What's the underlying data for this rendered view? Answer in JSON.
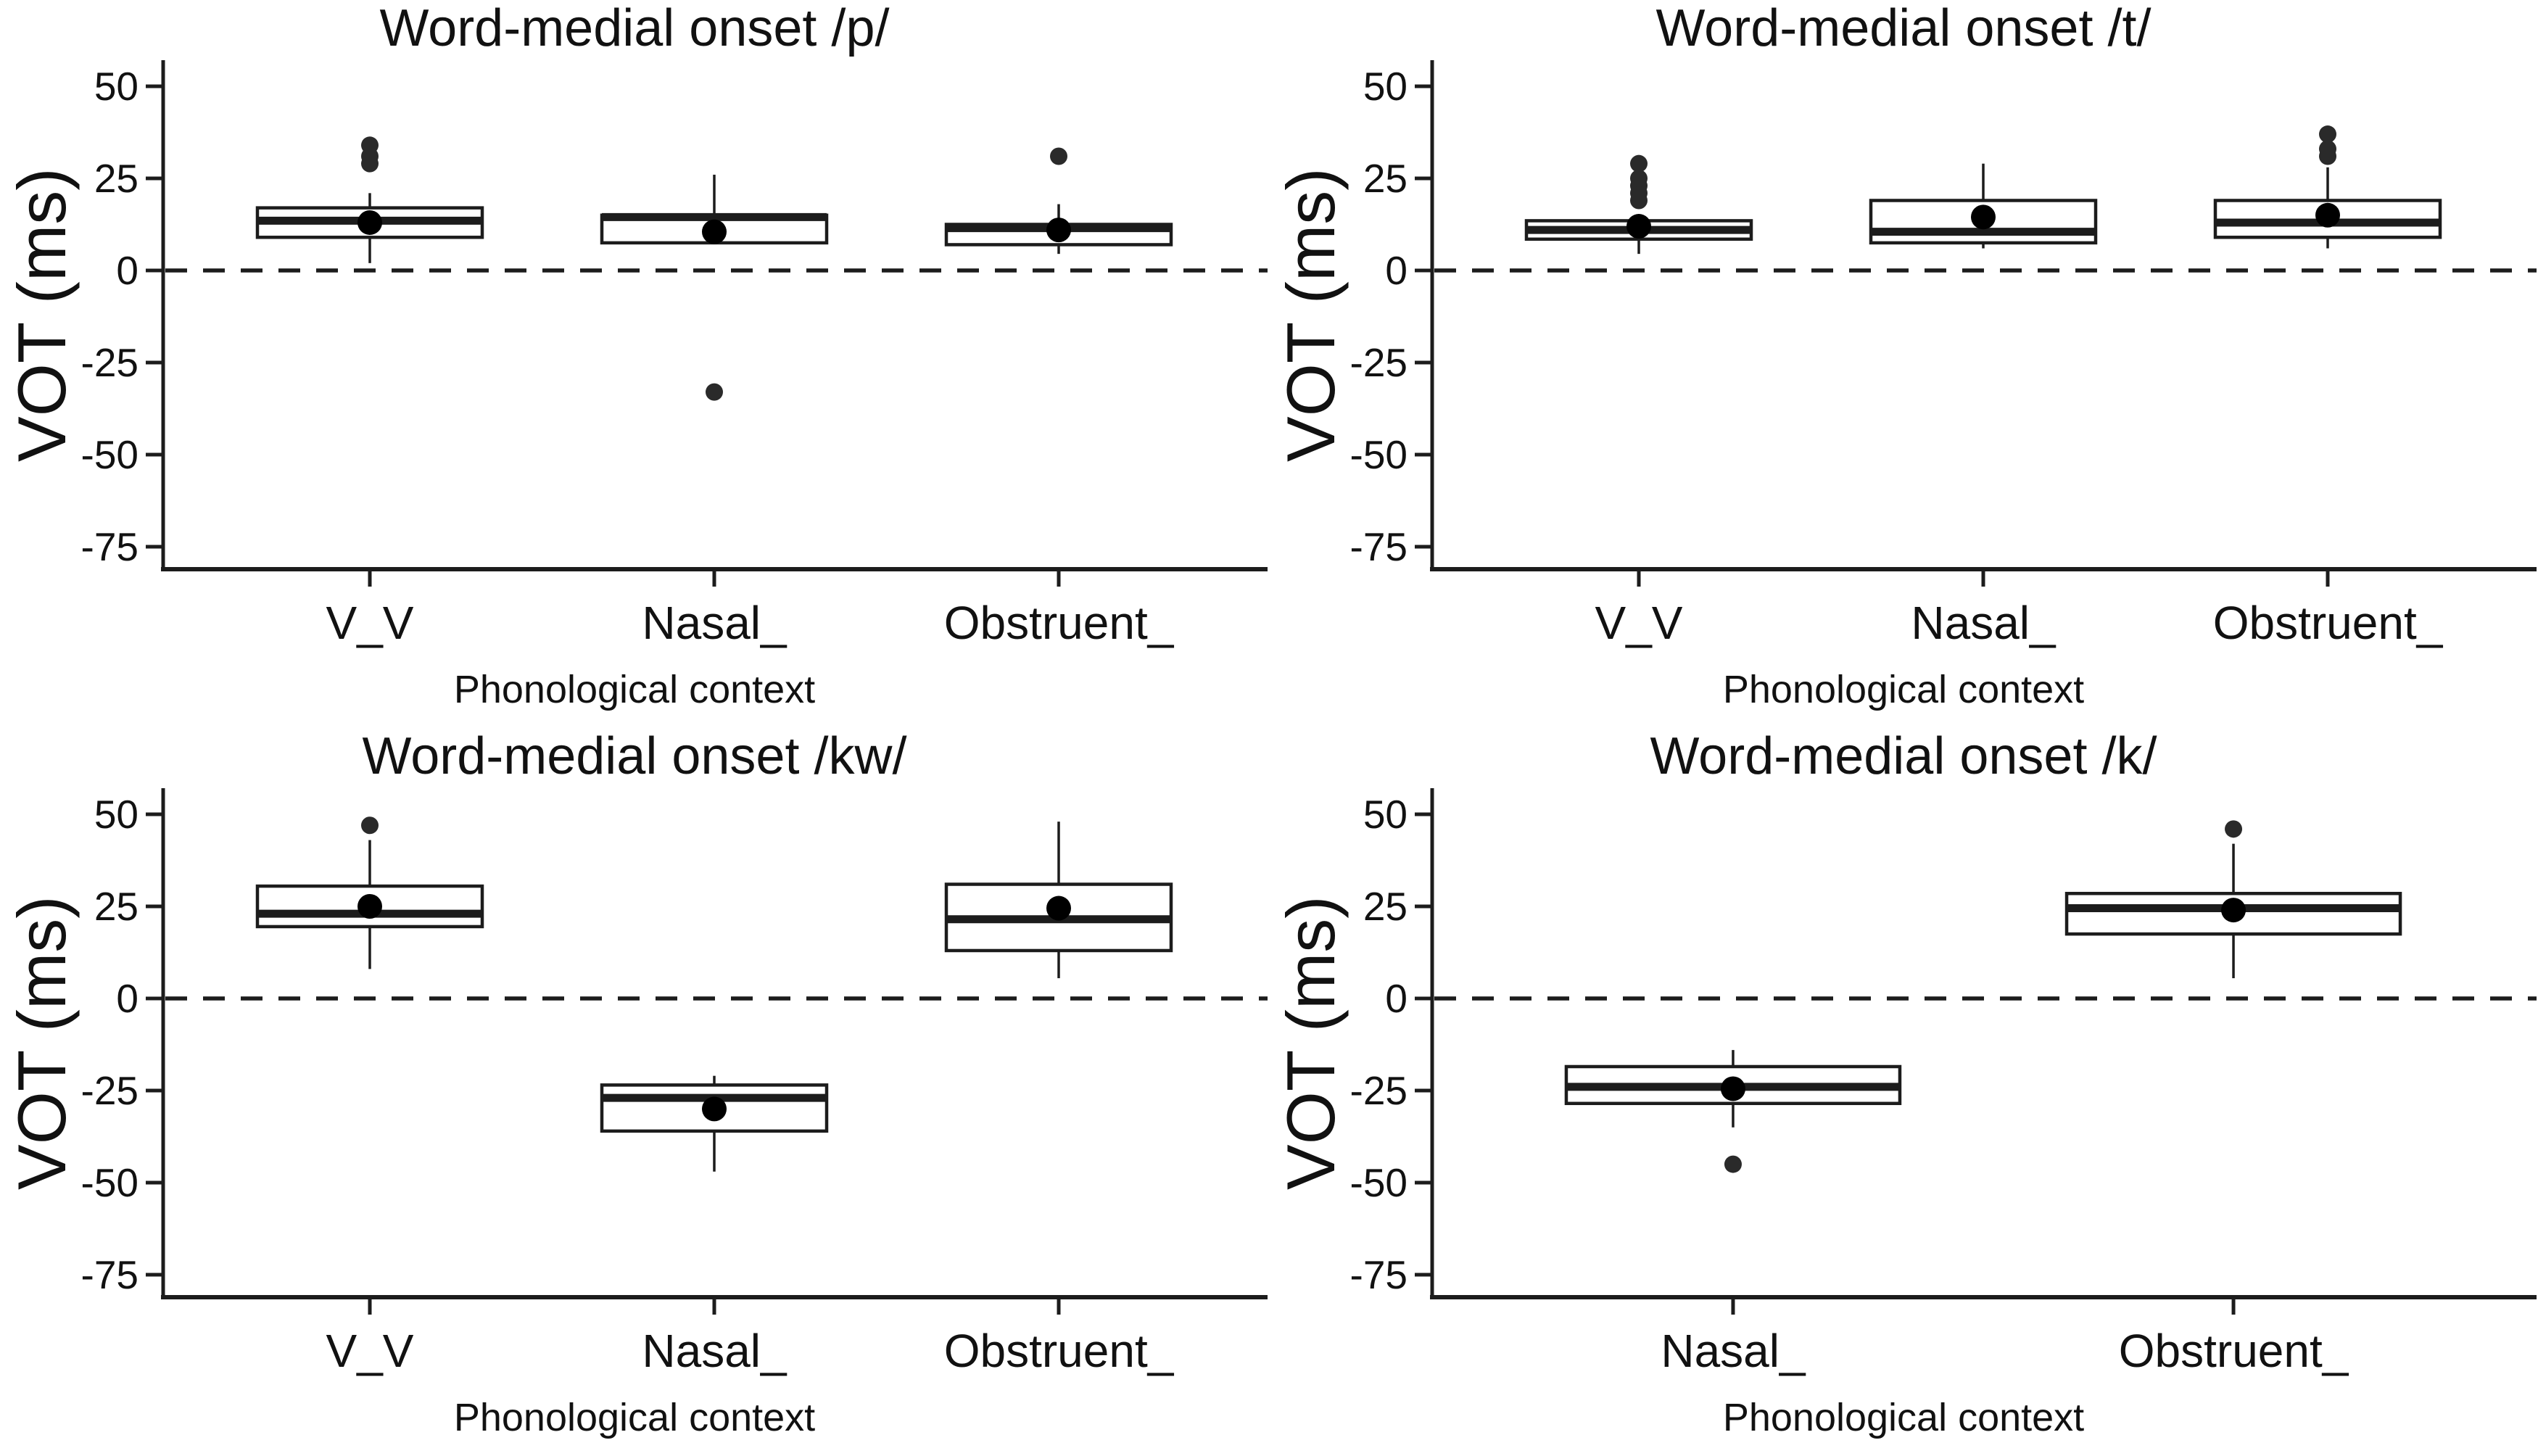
{
  "figure": {
    "background": "#ffffff",
    "ink_color": "#1c1c1c",
    "text_color": "#111111",
    "layout": "2x2 grid of boxplot panels"
  },
  "chart_data": [
    {
      "type": "boxplot",
      "title": "Word-medial onset /p/",
      "xlabel": "Phonological context",
      "ylabel": "VOT (ms)",
      "ylim": [
        -81,
        57
      ],
      "y_ticks": [
        50,
        25,
        0,
        -25,
        -50,
        -75
      ],
      "reference_line_y": 0,
      "grid": "off",
      "legend": "none",
      "categories": [
        "V_V",
        "Nasal_",
        "Obstruent_"
      ],
      "boxes": [
        {
          "category": "V_V",
          "whisker_low": 2,
          "q1": 9,
          "median": 13.5,
          "q3": 17,
          "whisker_high": 21,
          "mean": 13,
          "outliers": [
            29,
            31,
            34
          ]
        },
        {
          "category": "Nasal_",
          "whisker_low": 7.5,
          "q1": 7.5,
          "median": 14.5,
          "q3": 15,
          "whisker_high": 26,
          "mean": 10.5,
          "outliers": [
            -33
          ]
        },
        {
          "category": "Obstruent_",
          "whisker_low": 4.5,
          "q1": 7,
          "median": 11.5,
          "q3": 12.5,
          "whisker_high": 18,
          "mean": 11,
          "outliers": [
            31
          ]
        }
      ]
    },
    {
      "type": "boxplot",
      "title": "Word-medial onset /t/",
      "xlabel": "Phonological context",
      "ylabel": "VOT (ms)",
      "ylim": [
        -81,
        57
      ],
      "y_ticks": [
        50,
        25,
        0,
        -25,
        -50,
        -75
      ],
      "reference_line_y": 0,
      "grid": "off",
      "legend": "none",
      "categories": [
        "V_V",
        "Nasal_",
        "Obstruent_"
      ],
      "boxes": [
        {
          "category": "V_V",
          "whisker_low": 4.5,
          "q1": 8.5,
          "median": 11,
          "q3": 13.5,
          "whisker_high": 15,
          "mean": 12,
          "outliers": [
            19,
            21,
            23,
            25,
            29
          ]
        },
        {
          "category": "Nasal_",
          "whisker_low": 6,
          "q1": 7.5,
          "median": 10.5,
          "q3": 19,
          "whisker_high": 29,
          "mean": 14.5,
          "outliers": []
        },
        {
          "category": "Obstruent_",
          "whisker_low": 6,
          "q1": 9,
          "median": 13,
          "q3": 19,
          "whisker_high": 28,
          "mean": 15,
          "outliers": [
            31,
            33,
            37
          ]
        }
      ]
    },
    {
      "type": "boxplot",
      "title": "Word-medial onset /kw/",
      "xlabel": "Phonological context",
      "ylabel": "VOT (ms)",
      "ylim": [
        -81,
        57
      ],
      "y_ticks": [
        50,
        25,
        0,
        -25,
        -50,
        -75
      ],
      "reference_line_y": 0,
      "grid": "off",
      "legend": "none",
      "categories": [
        "V_V",
        "Nasal_",
        "Obstruent_"
      ],
      "boxes": [
        {
          "category": "V_V",
          "whisker_low": 8,
          "q1": 19.5,
          "median": 23,
          "q3": 30.5,
          "whisker_high": 43,
          "mean": 25,
          "outliers": [
            47
          ]
        },
        {
          "category": "Nasal_",
          "whisker_low": -47,
          "q1": -36,
          "median": -27,
          "q3": -23.5,
          "whisker_high": -21,
          "mean": -30,
          "outliers": []
        },
        {
          "category": "Obstruent_",
          "whisker_low": 5.5,
          "q1": 13,
          "median": 21.5,
          "q3": 31,
          "whisker_high": 48,
          "mean": 24.5,
          "outliers": []
        }
      ]
    },
    {
      "type": "boxplot",
      "title": "Word-medial onset /k/",
      "xlabel": "Phonological context",
      "ylabel": "VOT (ms)",
      "ylim": [
        -81,
        57
      ],
      "y_ticks": [
        50,
        25,
        0,
        -25,
        -50,
        -75
      ],
      "reference_line_y": 0,
      "grid": "off",
      "legend": "none",
      "categories": [
        "Nasal_",
        "Obstruent_"
      ],
      "boxes": [
        {
          "category": "Nasal_",
          "whisker_low": -35,
          "q1": -28.5,
          "median": -24,
          "q3": -18.5,
          "whisker_high": -14,
          "mean": -24.5,
          "outliers": [
            -45
          ]
        },
        {
          "category": "Obstruent_",
          "whisker_low": 5.5,
          "q1": 17.5,
          "median": 24.5,
          "q3": 28.5,
          "whisker_high": 42,
          "mean": 24,
          "outliers": [
            46
          ]
        }
      ]
    }
  ]
}
